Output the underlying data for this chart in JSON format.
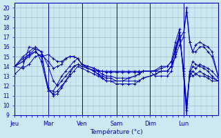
{
  "background_color": "#cce8f0",
  "grid_color": "#99bfcc",
  "line_color": "#0000bb",
  "xlabel": "Température (°c)",
  "ylim": [
    9,
    20.5
  ],
  "yticks": [
    9,
    10,
    11,
    12,
    13,
    14,
    15,
    16,
    17,
    18,
    19,
    20
  ],
  "day_labels": [
    "Jeu",
    "Mar",
    "Ven",
    "Sam",
    "Dim",
    "Lun"
  ],
  "day_positions_norm": [
    0.0,
    0.165,
    0.33,
    0.5,
    0.665,
    0.83
  ],
  "lines": [
    {
      "points": [
        [
          0.0,
          14.0
        ],
        [
          0.04,
          13.8
        ],
        [
          0.07,
          14.2
        ],
        [
          0.1,
          15.0
        ],
        [
          0.13,
          15.2
        ],
        [
          0.165,
          14.5
        ],
        [
          0.19,
          13.8
        ],
        [
          0.21,
          14.0
        ],
        [
          0.23,
          14.2
        ],
        [
          0.25,
          14.8
        ],
        [
          0.27,
          15.0
        ],
        [
          0.29,
          15.0
        ],
        [
          0.31,
          14.8
        ],
        [
          0.33,
          14.2
        ],
        [
          0.36,
          14.0
        ],
        [
          0.39,
          13.8
        ],
        [
          0.41,
          13.6
        ],
        [
          0.43,
          13.5
        ],
        [
          0.45,
          13.5
        ],
        [
          0.47,
          13.5
        ],
        [
          0.5,
          13.5
        ],
        [
          0.53,
          13.5
        ],
        [
          0.56,
          13.5
        ],
        [
          0.59,
          13.5
        ],
        [
          0.61,
          13.5
        ],
        [
          0.63,
          13.5
        ],
        [
          0.665,
          13.5
        ],
        [
          0.69,
          13.5
        ],
        [
          0.72,
          13.5
        ],
        [
          0.75,
          13.5
        ],
        [
          0.77,
          14.0
        ],
        [
          0.79,
          15.0
        ],
        [
          0.81,
          16.2
        ],
        [
          0.83,
          17.0
        ],
        [
          0.845,
          20.0
        ],
        [
          0.86,
          16.5
        ],
        [
          0.875,
          15.5
        ],
        [
          0.89,
          15.5
        ],
        [
          0.91,
          16.0
        ],
        [
          0.93,
          16.0
        ],
        [
          0.95,
          15.5
        ],
        [
          0.97,
          15.0
        ],
        [
          1.0,
          13.0
        ]
      ]
    },
    {
      "points": [
        [
          0.0,
          14.0
        ],
        [
          0.04,
          14.5
        ],
        [
          0.07,
          15.2
        ],
        [
          0.1,
          15.5
        ],
        [
          0.13,
          15.0
        ],
        [
          0.165,
          15.2
        ],
        [
          0.19,
          14.8
        ],
        [
          0.21,
          14.5
        ],
        [
          0.23,
          14.5
        ],
        [
          0.25,
          14.8
        ],
        [
          0.27,
          15.0
        ],
        [
          0.29,
          15.0
        ],
        [
          0.31,
          14.8
        ],
        [
          0.33,
          14.2
        ],
        [
          0.36,
          13.8
        ],
        [
          0.39,
          13.6
        ],
        [
          0.41,
          13.5
        ],
        [
          0.43,
          13.5
        ],
        [
          0.45,
          13.4
        ],
        [
          0.47,
          13.4
        ],
        [
          0.5,
          13.4
        ],
        [
          0.53,
          13.4
        ],
        [
          0.56,
          13.4
        ],
        [
          0.59,
          13.4
        ],
        [
          0.61,
          13.4
        ],
        [
          0.63,
          13.5
        ],
        [
          0.665,
          13.5
        ],
        [
          0.69,
          13.6
        ],
        [
          0.72,
          14.0
        ],
        [
          0.75,
          14.0
        ],
        [
          0.77,
          14.5
        ],
        [
          0.79,
          15.5
        ],
        [
          0.81,
          16.8
        ],
        [
          0.83,
          17.5
        ],
        [
          0.845,
          19.5
        ],
        [
          0.86,
          16.5
        ],
        [
          0.875,
          15.5
        ],
        [
          0.89,
          16.2
        ],
        [
          0.91,
          16.5
        ],
        [
          0.93,
          16.2
        ],
        [
          0.95,
          16.0
        ],
        [
          0.97,
          15.5
        ],
        [
          1.0,
          13.0
        ]
      ]
    },
    {
      "points": [
        [
          0.0,
          13.2
        ],
        [
          0.04,
          14.0
        ],
        [
          0.07,
          16.0
        ],
        [
          0.1,
          15.8
        ],
        [
          0.13,
          14.5
        ],
        [
          0.165,
          11.5
        ],
        [
          0.19,
          11.2
        ],
        [
          0.21,
          11.5
        ],
        [
          0.23,
          12.0
        ],
        [
          0.25,
          12.5
        ],
        [
          0.27,
          13.0
        ],
        [
          0.29,
          13.5
        ],
        [
          0.31,
          14.0
        ],
        [
          0.33,
          13.8
        ],
        [
          0.36,
          13.5
        ],
        [
          0.39,
          13.2
        ],
        [
          0.41,
          13.0
        ],
        [
          0.43,
          12.8
        ],
        [
          0.45,
          12.5
        ],
        [
          0.47,
          12.5
        ],
        [
          0.5,
          12.5
        ],
        [
          0.53,
          12.5
        ],
        [
          0.56,
          12.8
        ],
        [
          0.59,
          13.0
        ],
        [
          0.61,
          13.2
        ],
        [
          0.63,
          13.5
        ],
        [
          0.665,
          13.5
        ],
        [
          0.69,
          13.0
        ],
        [
          0.72,
          13.0
        ],
        [
          0.75,
          13.0
        ],
        [
          0.77,
          13.5
        ],
        [
          0.79,
          15.2
        ],
        [
          0.81,
          17.5
        ],
        [
          0.83,
          13.2
        ],
        [
          0.845,
          9.0
        ],
        [
          0.86,
          13.5
        ],
        [
          0.875,
          13.0
        ],
        [
          0.89,
          13.2
        ],
        [
          0.91,
          13.0
        ],
        [
          0.93,
          13.0
        ],
        [
          0.95,
          12.8
        ],
        [
          0.97,
          12.5
        ],
        [
          1.0,
          12.5
        ]
      ]
    },
    {
      "points": [
        [
          0.0,
          14.0
        ],
        [
          0.04,
          15.0
        ],
        [
          0.07,
          15.5
        ],
        [
          0.1,
          16.0
        ],
        [
          0.13,
          15.5
        ],
        [
          0.165,
          14.0
        ],
        [
          0.19,
          12.5
        ],
        [
          0.21,
          12.0
        ],
        [
          0.23,
          12.5
        ],
        [
          0.25,
          13.0
        ],
        [
          0.27,
          13.5
        ],
        [
          0.29,
          14.0
        ],
        [
          0.31,
          14.2
        ],
        [
          0.33,
          14.0
        ],
        [
          0.36,
          13.8
        ],
        [
          0.39,
          13.5
        ],
        [
          0.41,
          13.2
        ],
        [
          0.43,
          13.0
        ],
        [
          0.45,
          12.8
        ],
        [
          0.47,
          12.8
        ],
        [
          0.5,
          12.5
        ],
        [
          0.53,
          12.5
        ],
        [
          0.56,
          12.5
        ],
        [
          0.59,
          12.5
        ],
        [
          0.61,
          12.5
        ],
        [
          0.63,
          12.8
        ],
        [
          0.665,
          13.0
        ],
        [
          0.69,
          13.2
        ],
        [
          0.72,
          13.5
        ],
        [
          0.75,
          13.5
        ],
        [
          0.77,
          14.0
        ],
        [
          0.79,
          15.8
        ],
        [
          0.81,
          17.0
        ],
        [
          0.83,
          13.5
        ],
        [
          0.845,
          10.2
        ],
        [
          0.86,
          13.0
        ],
        [
          0.875,
          13.5
        ],
        [
          0.89,
          13.2
        ],
        [
          0.91,
          13.5
        ],
        [
          0.93,
          13.2
        ],
        [
          0.95,
          13.0
        ],
        [
          0.97,
          12.8
        ],
        [
          1.0,
          12.5
        ]
      ]
    },
    {
      "points": [
        [
          0.0,
          14.0
        ],
        [
          0.04,
          14.5
        ],
        [
          0.07,
          15.0
        ],
        [
          0.1,
          15.5
        ],
        [
          0.13,
          15.0
        ],
        [
          0.165,
          11.8
        ],
        [
          0.19,
          11.0
        ],
        [
          0.21,
          11.2
        ],
        [
          0.23,
          11.8
        ],
        [
          0.25,
          12.5
        ],
        [
          0.27,
          13.2
        ],
        [
          0.29,
          14.0
        ],
        [
          0.31,
          14.2
        ],
        [
          0.33,
          14.0
        ],
        [
          0.36,
          13.8
        ],
        [
          0.39,
          13.5
        ],
        [
          0.41,
          13.2
        ],
        [
          0.43,
          12.8
        ],
        [
          0.45,
          12.5
        ],
        [
          0.47,
          12.5
        ],
        [
          0.5,
          12.2
        ],
        [
          0.53,
          12.2
        ],
        [
          0.56,
          12.2
        ],
        [
          0.59,
          12.2
        ],
        [
          0.61,
          12.5
        ],
        [
          0.63,
          12.8
        ],
        [
          0.665,
          13.0
        ],
        [
          0.69,
          13.2
        ],
        [
          0.72,
          13.5
        ],
        [
          0.75,
          13.5
        ],
        [
          0.77,
          14.0
        ],
        [
          0.79,
          16.0
        ],
        [
          0.81,
          17.2
        ],
        [
          0.83,
          13.8
        ],
        [
          0.845,
          9.8
        ],
        [
          0.86,
          13.5
        ],
        [
          0.875,
          14.5
        ],
        [
          0.89,
          14.2
        ],
        [
          0.91,
          14.0
        ],
        [
          0.93,
          13.8
        ],
        [
          0.95,
          13.5
        ],
        [
          0.97,
          13.0
        ],
        [
          1.0,
          12.5
        ]
      ]
    },
    {
      "points": [
        [
          0.0,
          14.0
        ],
        [
          0.04,
          14.8
        ],
        [
          0.07,
          15.2
        ],
        [
          0.1,
          15.8
        ],
        [
          0.13,
          15.5
        ],
        [
          0.165,
          11.5
        ],
        [
          0.19,
          11.5
        ],
        [
          0.21,
          12.2
        ],
        [
          0.23,
          13.0
        ],
        [
          0.25,
          13.5
        ],
        [
          0.27,
          14.0
        ],
        [
          0.29,
          14.5
        ],
        [
          0.31,
          14.8
        ],
        [
          0.33,
          14.2
        ],
        [
          0.36,
          14.0
        ],
        [
          0.39,
          13.8
        ],
        [
          0.41,
          13.5
        ],
        [
          0.43,
          13.2
        ],
        [
          0.45,
          13.0
        ],
        [
          0.47,
          13.0
        ],
        [
          0.5,
          12.8
        ],
        [
          0.53,
          12.8
        ],
        [
          0.56,
          12.8
        ],
        [
          0.59,
          13.0
        ],
        [
          0.61,
          13.2
        ],
        [
          0.63,
          13.5
        ],
        [
          0.665,
          13.5
        ],
        [
          0.69,
          13.5
        ],
        [
          0.72,
          13.8
        ],
        [
          0.75,
          14.0
        ],
        [
          0.77,
          14.5
        ],
        [
          0.79,
          16.5
        ],
        [
          0.81,
          17.8
        ],
        [
          0.83,
          13.0
        ],
        [
          0.845,
          9.5
        ],
        [
          0.86,
          13.2
        ],
        [
          0.875,
          14.0
        ],
        [
          0.89,
          13.8
        ],
        [
          0.91,
          14.2
        ],
        [
          0.93,
          14.0
        ],
        [
          0.95,
          13.8
        ],
        [
          0.97,
          13.5
        ],
        [
          1.0,
          12.8
        ]
      ]
    }
  ]
}
